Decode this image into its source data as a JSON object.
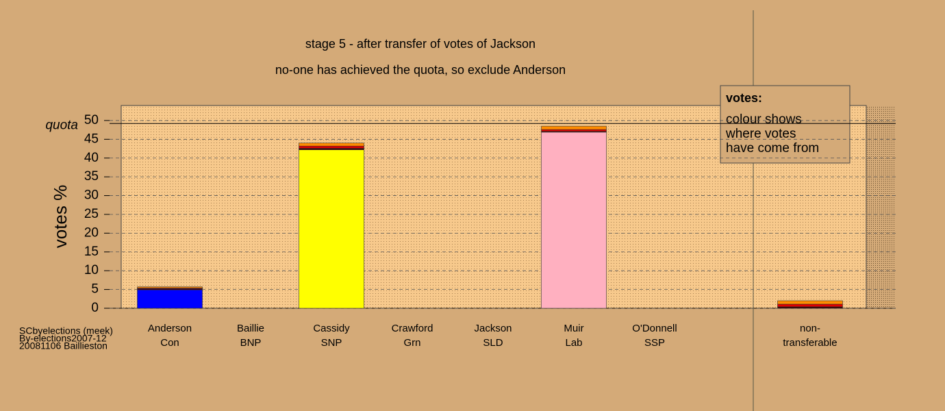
{
  "chart_data": {
    "type": "bar",
    "title": "stage 5 - after transfer of votes of Jackson",
    "subtitle": "no-one has achieved the quota, so exclude Anderson",
    "y_label": "votes %",
    "categories": [
      "Anderson",
      "Baillie",
      "Cassidy",
      "Crawford",
      "Jackson",
      "Muir",
      "O'Donnell",
      "non-"
    ],
    "parties": [
      "Con",
      "BNP",
      "SNP",
      "Grn",
      "SLD",
      "Lab",
      "SSP",
      "transferable"
    ],
    "series": [
      {
        "colors": [
          "#0000ff",
          "#3a0000",
          "#ffff00",
          "#00a000",
          "#ffa500",
          "#ffb0c0",
          "#e00000",
          "#808080"
        ],
        "values": [
          4.9,
          0,
          42.2,
          0,
          0,
          46.9,
          0,
          0
        ]
      },
      {
        "color": "#3a0000",
        "values": [
          0.3,
          0,
          0.4,
          0,
          0,
          0.2,
          0,
          0.4
        ]
      },
      {
        "color": "#e00000",
        "values": [
          0.2,
          0,
          0.6,
          0,
          0,
          0.5,
          0,
          0.7
        ]
      },
      {
        "color": "#ff8c00",
        "values": [
          0.3,
          0,
          0.8,
          0,
          0,
          0.9,
          0,
          0.9
        ]
      }
    ],
    "ylim": [
      0,
      54
    ],
    "yticks": [
      0,
      5,
      10,
      15,
      20,
      25,
      30,
      35,
      40,
      45,
      50
    ],
    "grid": true,
    "quota": {
      "label": "quota",
      "value": 49.2
    },
    "legend": {
      "title": "votes:",
      "lines": [
        "colour shows",
        "where votes",
        "have come from"
      ]
    },
    "footnote": [
      "SCbyelections (meek)",
      "By-elections2007-12",
      "20081106 Baillieston"
    ]
  }
}
